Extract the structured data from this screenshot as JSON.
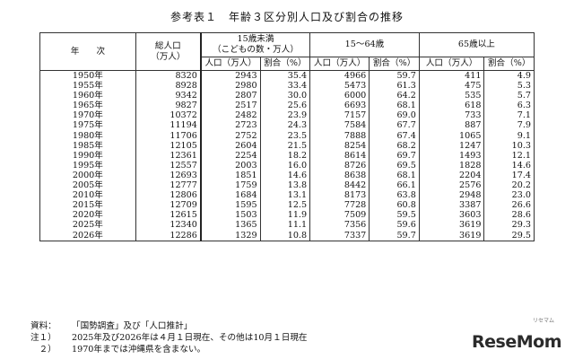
{
  "title": "参考表１　年齢３区分別人口及び割合の推移",
  "header": {
    "year": "年　　次",
    "total_line1": "総人口",
    "total_line2": "（万人）",
    "group_under15_line1": "15歳未満",
    "group_under15_line2": "（こどもの数・万人）",
    "group_15_64": "15～64歳",
    "group_65plus": "65歳以上",
    "pop": "人口（万人）",
    "ratio": "割合（%）"
  },
  "rows": [
    [
      "1950年",
      "8320",
      "2943",
      "35.4",
      "4966",
      "59.7",
      "411",
      "4.9"
    ],
    [
      "1955年",
      "8928",
      "2980",
      "33.4",
      "5473",
      "61.3",
      "475",
      "5.3"
    ],
    [
      "1960年",
      "9342",
      "2807",
      "30.0",
      "6000",
      "64.2",
      "535",
      "5.7"
    ],
    [
      "1965年",
      "9827",
      "2517",
      "25.6",
      "6693",
      "68.1",
      "618",
      "6.3"
    ],
    [
      "1970年",
      "10372",
      "2482",
      "23.9",
      "7157",
      "69.0",
      "733",
      "7.1"
    ],
    [
      "1975年",
      "11194",
      "2723",
      "24.3",
      "7584",
      "67.7",
      "887",
      "7.9"
    ],
    [
      "1980年",
      "11706",
      "2752",
      "23.5",
      "7888",
      "67.4",
      "1065",
      "9.1"
    ],
    [
      "1985年",
      "12105",
      "2604",
      "21.5",
      "8254",
      "68.2",
      "1247",
      "10.3"
    ],
    [
      "1990年",
      "12361",
      "2254",
      "18.2",
      "8614",
      "69.7",
      "1493",
      "12.1"
    ],
    [
      "1995年",
      "12557",
      "2003",
      "16.0",
      "8726",
      "69.5",
      "1828",
      "14.6"
    ],
    [
      "2000年",
      "12693",
      "1851",
      "14.6",
      "8638",
      "68.1",
      "2204",
      "17.4"
    ],
    [
      "2005年",
      "12777",
      "1759",
      "13.8",
      "8442",
      "66.1",
      "2576",
      "20.2"
    ],
    [
      "2010年",
      "12806",
      "1684",
      "13.1",
      "8173",
      "63.8",
      "2948",
      "23.0"
    ],
    [
      "2015年",
      "12709",
      "1595",
      "12.5",
      "7728",
      "60.8",
      "3387",
      "26.6"
    ],
    [
      "2020年",
      "12615",
      "1503",
      "11.9",
      "7509",
      "59.5",
      "3603",
      "28.6"
    ],
    [
      "2025年",
      "12340",
      "1365",
      "11.1",
      "7356",
      "59.6",
      "3619",
      "29.3"
    ],
    [
      "2026年",
      "12286",
      "1329",
      "10.8",
      "7337",
      "59.7",
      "3619",
      "29.5"
    ]
  ],
  "notes": [
    {
      "label": "資料：",
      "text": "「国勢調査」及び「人口推計」"
    },
    {
      "label": "注１）",
      "text": "2025年及び2026年は４月１日現在、その他は10月１日現在"
    },
    {
      "label": "　２）",
      "text": "1970年までは沖縄県を含まない。"
    }
  ],
  "logo": {
    "text": "ReseMom",
    "small": "リセマム"
  }
}
